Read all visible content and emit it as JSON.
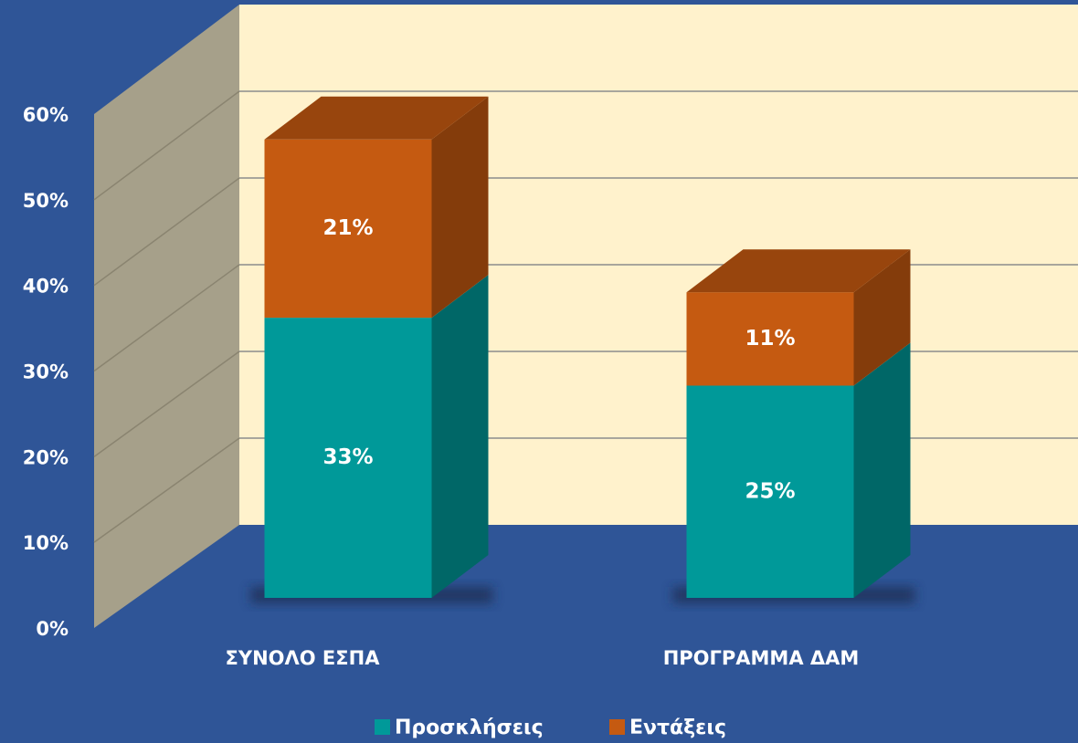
{
  "chart_data": {
    "type": "bar3d_stacked",
    "categories": [
      "ΣΥΝΟΛΟ ΕΣΠΑ",
      "ΠΡΟΓΡΑΜΜΑ ΔΑΜ"
    ],
    "series": [
      {
        "name": "Προσκλήσεις",
        "color": "#009999",
        "values": [
          33,
          25
        ],
        "value_labels": [
          "33%",
          "25%"
        ]
      },
      {
        "name": "Εντάξεις",
        "color": "#c55a11",
        "values": [
          21,
          11
        ],
        "value_labels": [
          "21%",
          "11%"
        ]
      }
    ],
    "ylim": [
      0,
      60
    ],
    "yticks": [
      {
        "value": 0,
        "label": "0%"
      },
      {
        "value": 10,
        "label": "10%"
      },
      {
        "value": 20,
        "label": "20%"
      },
      {
        "value": 30,
        "label": "30%"
      },
      {
        "value": 40,
        "label": "40%"
      },
      {
        "value": 50,
        "label": "50%"
      },
      {
        "value": 60,
        "label": "60%"
      }
    ],
    "grid": true
  }
}
